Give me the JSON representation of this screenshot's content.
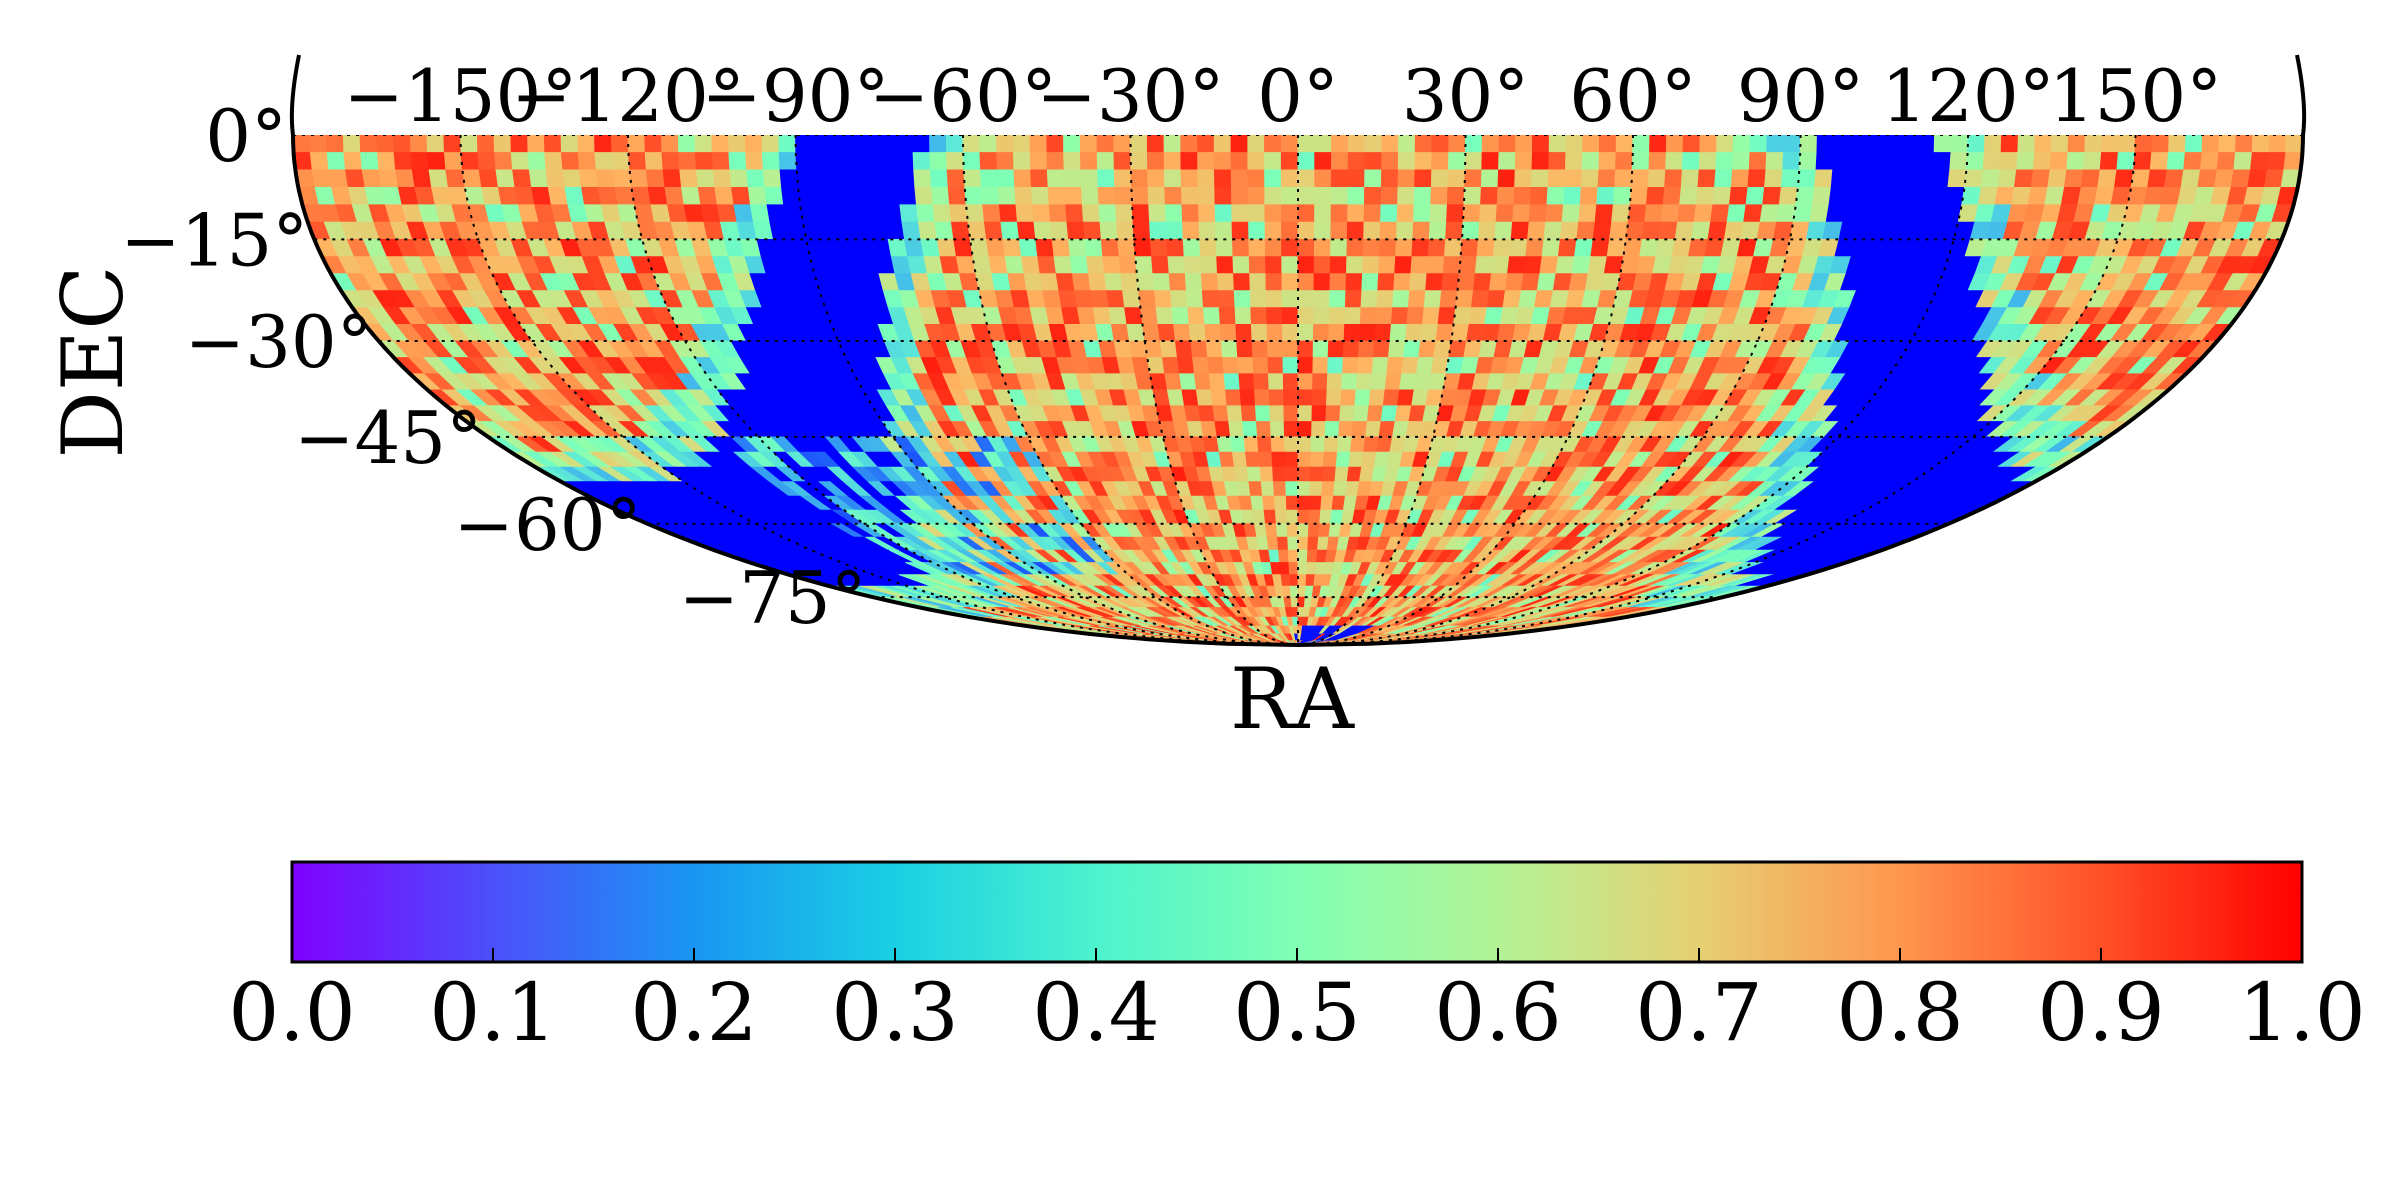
{
  "chart_data": {
    "type": "heatmap",
    "projection": "mollweide-southern-hemisphere",
    "xlabel": "RA",
    "ylabel": "DEC",
    "ra_ticks": [
      "−150°",
      "−120°",
      "−90°",
      "−60°",
      "−30°",
      "0°",
      "30°",
      "60°",
      "90°",
      "120°",
      "150°"
    ],
    "ra_values": [
      -150,
      -120,
      -90,
      -60,
      -30,
      0,
      30,
      60,
      90,
      120,
      150
    ],
    "dec_ticks": [
      "0°",
      "−15°",
      "−30°",
      "−45°",
      "−60°",
      "−75°"
    ],
    "dec_values": [
      0,
      -15,
      -30,
      -45,
      -60,
      -75
    ],
    "ra_range": [
      -180,
      180
    ],
    "dec_range": [
      -90,
      0
    ],
    "grid": true,
    "colormap": "rainbow",
    "colorbar": {
      "orientation": "horizontal",
      "location": "bottom",
      "range": [
        0.0,
        1.0
      ],
      "ticks": [
        "0.0",
        "0.1",
        "0.2",
        "0.3",
        "0.4",
        "0.5",
        "0.6",
        "0.7",
        "0.8",
        "0.9",
        "1.0"
      ],
      "tick_values": [
        0.0,
        0.1,
        0.2,
        0.3,
        0.4,
        0.5,
        0.6,
        0.7,
        0.8,
        0.9,
        1.0
      ]
    },
    "features": {
      "galactic_plane_band_value": 0.0,
      "typical_sky_value_range": [
        0.6,
        0.95
      ],
      "low_value_regions": "blue/cyan patches near RA -90 to -60 deg and near RA 60 to 90 deg, plus south-west region near DEC -60 deg"
    }
  }
}
